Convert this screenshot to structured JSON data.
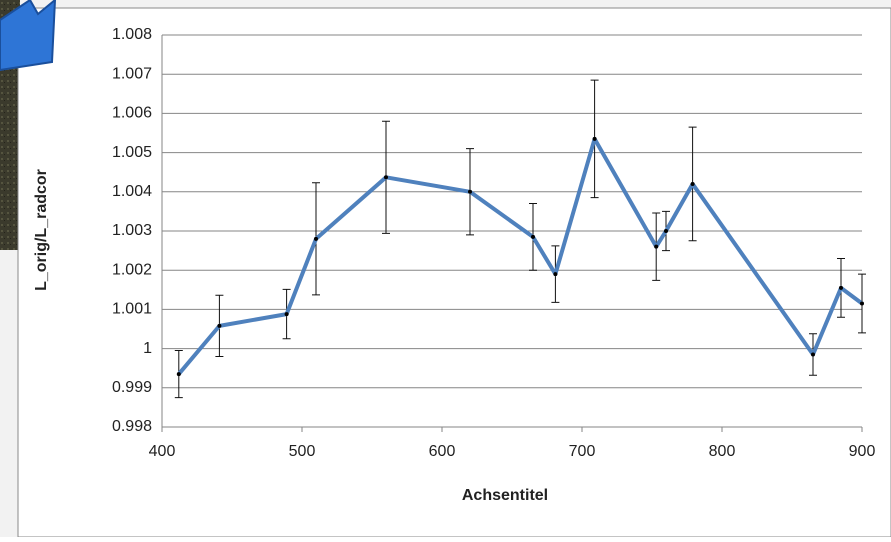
{
  "chart_data": {
    "type": "line",
    "x_label": "Achsentitel",
    "y_label": "L_orig/L_radcor",
    "x": [
      412,
      441,
      489,
      510,
      560,
      620,
      665,
      681,
      709,
      753,
      760,
      779,
      865,
      885,
      900
    ],
    "series": [
      {
        "color": "#4f81bd",
        "values": [
          0.99935,
          1.00058,
          1.00088,
          1.0028,
          1.00437,
          1.004,
          1.00285,
          1.0019,
          1.00535,
          1.0026,
          1.003,
          1.0042,
          0.99985,
          1.00155,
          1.00115
        ],
        "errors": [
          0.0006,
          0.00078,
          0.00063,
          0.00143,
          0.00143,
          0.0011,
          0.00085,
          0.00072,
          0.0015,
          0.00086,
          0.0005,
          0.00145,
          0.00053,
          0.00075,
          0.00075
        ]
      }
    ],
    "xlim": [
      400,
      900
    ],
    "xticks": [
      400,
      500,
      600,
      700,
      800,
      900
    ],
    "ylim": [
      0.998,
      1.008
    ],
    "yticks": [
      0.998,
      0.999,
      1,
      1.001,
      1.002,
      1.003,
      1.004,
      1.005,
      1.006,
      1.007,
      1.008
    ],
    "grid": true
  }
}
